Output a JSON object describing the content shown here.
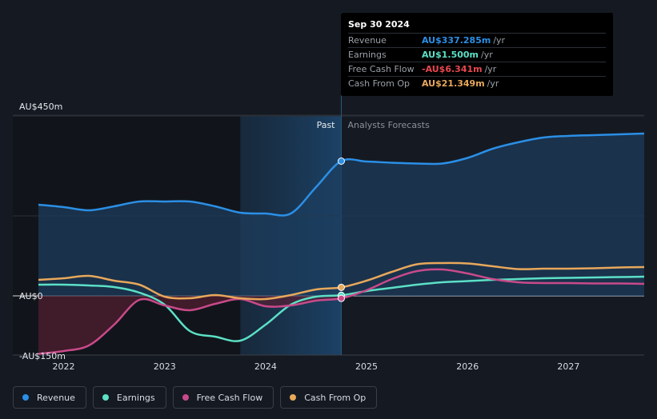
{
  "tooltip": {
    "date": "Sep 30 2024",
    "rows": [
      {
        "label": "Revenue",
        "value": "AU$337.285m",
        "unit": "/yr",
        "color": "#2b8fe6"
      },
      {
        "label": "Earnings",
        "value": "AU$1.500m",
        "unit": "/yr",
        "color": "#5ce0c6"
      },
      {
        "label": "Free Cash Flow",
        "value": "-AU$6.341m",
        "unit": "/yr",
        "color": "#e8474f"
      },
      {
        "label": "Cash From Op",
        "value": "AU$21.349m",
        "unit": "/yr",
        "color": "#e8a85b"
      }
    ]
  },
  "legend": [
    {
      "label": "Revenue",
      "color": "#2b8fe6"
    },
    {
      "label": "Earnings",
      "color": "#5ce0c6"
    },
    {
      "label": "Free Cash Flow",
      "color": "#c84a8a"
    },
    {
      "label": "Cash From Op",
      "color": "#e8a85b"
    }
  ],
  "chart_data": {
    "type": "line",
    "y_tick_labels": [
      {
        "value": 450,
        "label": "AU$450m"
      },
      {
        "value": 0,
        "label": "AU$0"
      },
      {
        "value": -150,
        "label": "-AU$150m"
      }
    ],
    "ylim": [
      -150,
      450
    ],
    "xlim": [
      2021.75,
      2027.75
    ],
    "x_ticks": [
      2022,
      2023,
      2024,
      2025,
      2026,
      2027
    ],
    "x_tick_labels": [
      "2022",
      "2023",
      "2024",
      "2025",
      "2026",
      "2027"
    ],
    "past_label": "Past",
    "forecast_label": "Analysts Forecasts",
    "past_region": [
      2023.75,
      2024.75
    ],
    "divider_x": 2024.75,
    "highlight_x": 2024.75,
    "series": [
      {
        "name": "Revenue",
        "color": "#2b8fe6",
        "x": [
          2021.75,
          2022,
          2022.25,
          2022.5,
          2022.75,
          2023,
          2023.25,
          2023.5,
          2023.75,
          2024,
          2024.25,
          2024.5,
          2024.75,
          2025,
          2025.25,
          2025.5,
          2025.75,
          2026,
          2026.25,
          2026.5,
          2026.75,
          2027,
          2027.25,
          2027.5,
          2027.75
        ],
        "values": [
          228,
          222,
          214,
          224,
          236,
          236,
          236,
          224,
          208,
          206,
          206,
          272,
          337,
          336,
          333,
          331,
          331,
          345,
          368,
          384,
          396,
          400,
          402,
          404,
          406
        ]
      },
      {
        "name": "Earnings",
        "color": "#5ce0c6",
        "x": [
          2021.75,
          2022,
          2022.25,
          2022.5,
          2022.75,
          2023,
          2023.25,
          2023.5,
          2023.75,
          2024,
          2024.25,
          2024.5,
          2024.75,
          2025,
          2025.25,
          2025.5,
          2025.75,
          2026,
          2026.25,
          2026.5,
          2026.75,
          2027,
          2027.25,
          2027.5,
          2027.75
        ],
        "values": [
          28,
          28,
          26,
          22,
          8,
          -22,
          -88,
          -102,
          -112,
          -72,
          -22,
          -2,
          1.5,
          12,
          20,
          28,
          34,
          37,
          40,
          42,
          44,
          45,
          46,
          47,
          48
        ]
      },
      {
        "name": "Free Cash Flow",
        "color": "#c84a8a",
        "x": [
          2021.75,
          2022,
          2022.25,
          2022.5,
          2022.75,
          2023,
          2023.25,
          2023.5,
          2023.75,
          2024,
          2024.25,
          2024.5,
          2024.75,
          2025,
          2025.25,
          2025.5,
          2025.75,
          2026,
          2026.25,
          2026.5,
          2026.75,
          2027,
          2027.25,
          2027.5,
          2027.75
        ],
        "values": [
          -145,
          -138,
          -124,
          -72,
          -10,
          -24,
          -36,
          -20,
          -8,
          -26,
          -24,
          -12,
          -6.3,
          14,
          42,
          62,
          66,
          56,
          42,
          34,
          32,
          32,
          31,
          31,
          30
        ]
      },
      {
        "name": "Cash From Op",
        "color": "#e8a85b",
        "x": [
          2021.75,
          2022,
          2022.25,
          2022.5,
          2022.75,
          2023,
          2023.25,
          2023.5,
          2023.75,
          2024,
          2024.25,
          2024.5,
          2024.75,
          2025,
          2025.25,
          2025.5,
          2025.75,
          2026,
          2026.25,
          2026.5,
          2026.75,
          2027,
          2027.25,
          2027.5,
          2027.75
        ],
        "values": [
          40,
          44,
          50,
          38,
          28,
          -2,
          -6,
          2,
          -6,
          -8,
          2,
          16,
          21.3,
          38,
          60,
          79,
          82,
          81,
          74,
          67,
          68,
          68,
          69,
          71,
          72
        ]
      }
    ]
  }
}
